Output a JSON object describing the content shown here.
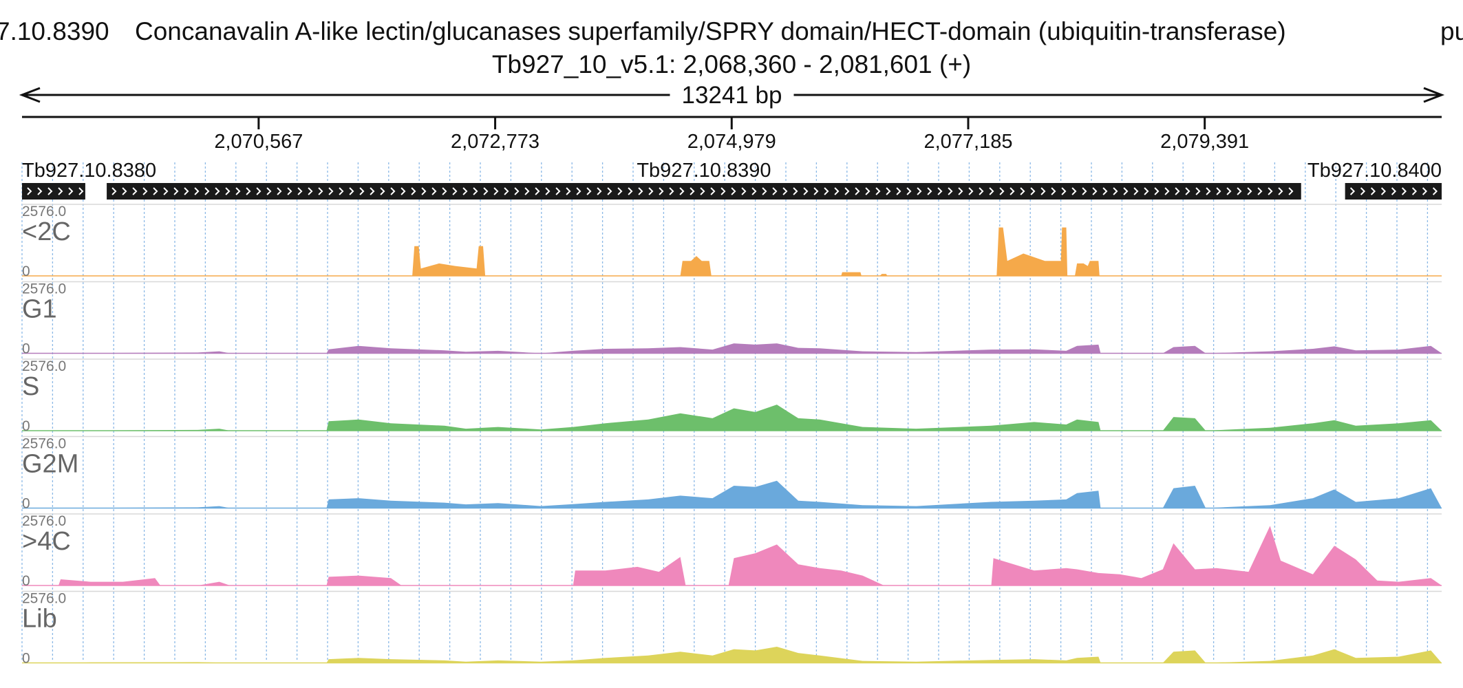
{
  "header": {
    "title_prefix": "7.10.8390",
    "title_description": "Concanavalin A-like lectin/glucanases superfamily/SPRY domain/HECT-domain (ubiquitin-transferase)",
    "title_suffix": "pu",
    "locus": "Tb927_10_v5.1: 2,068,360 - 2,081,601 (+)",
    "span_label": "13241 bp"
  },
  "colors": {
    "<2C": "#f5a94a",
    "G1": "#b47cbb",
    "S": "#6dbf6b",
    "G2M": "#6aa9dc",
    ">4C": "#ef88bc",
    "Lib": "#ddd45a",
    "gene": "#1a1a1a",
    "grid": "#8ab8e6"
  },
  "chart_data": {
    "type": "area",
    "x_range": [
      2068360,
      2081601
    ],
    "x_unit": "bp",
    "ticks": [
      2070567,
      2072773,
      2074979,
      2077185,
      2079391
    ],
    "tick_labels": [
      "2,070,567",
      "2,072,773",
      "2,074,979",
      "2,077,185",
      "2,079,391"
    ],
    "genes": [
      {
        "name": "Tb927.10.8380",
        "start": 2068360,
        "end": 2068950,
        "strand": "+"
      },
      {
        "name": "Tb927.10.8390",
        "start": 2069150,
        "end": 2080290,
        "strand": "+"
      },
      {
        "name": "Tb927.10.8400",
        "start": 2080700,
        "end": 2081601,
        "strand": "+"
      }
    ],
    "tracks": [
      {
        "name": "<2C",
        "max_label": "2576.0",
        "min_label": "0",
        "profile": [
          [
            2068360,
            0
          ],
          [
            2068900,
            5
          ],
          [
            2069100,
            0
          ],
          [
            2072000,
            0
          ],
          [
            2072020,
            1200
          ],
          [
            2072060,
            1200
          ],
          [
            2072080,
            300
          ],
          [
            2072250,
            500
          ],
          [
            2072400,
            400
          ],
          [
            2072600,
            300
          ],
          [
            2072620,
            1200
          ],
          [
            2072660,
            1200
          ],
          [
            2072680,
            0
          ],
          [
            2074500,
            0
          ],
          [
            2074520,
            600
          ],
          [
            2074600,
            600
          ],
          [
            2074650,
            800
          ],
          [
            2074700,
            600
          ],
          [
            2074770,
            600
          ],
          [
            2074790,
            0
          ],
          [
            2076000,
            0
          ],
          [
            2076010,
            150
          ],
          [
            2076180,
            150
          ],
          [
            2076190,
            0
          ],
          [
            2076360,
            0
          ],
          [
            2076380,
            80
          ],
          [
            2076420,
            80
          ],
          [
            2076430,
            0
          ],
          [
            2077450,
            0
          ],
          [
            2077470,
            1950
          ],
          [
            2077510,
            1950
          ],
          [
            2077550,
            600
          ],
          [
            2077700,
            900
          ],
          [
            2077900,
            600
          ],
          [
            2078050,
            600
          ],
          [
            2078060,
            1950
          ],
          [
            2078100,
            1950
          ],
          [
            2078110,
            0
          ],
          [
            2078180,
            0
          ],
          [
            2078200,
            500
          ],
          [
            2078260,
            500
          ],
          [
            2078300,
            400
          ],
          [
            2078320,
            600
          ],
          [
            2078400,
            600
          ],
          [
            2078410,
            0
          ],
          [
            2081601,
            0
          ]
        ]
      },
      {
        "name": "G1",
        "max_label": "2576.0",
        "min_label": "0",
        "profile": [
          [
            2068360,
            0
          ],
          [
            2068900,
            15
          ],
          [
            2069200,
            15
          ],
          [
            2070000,
            30
          ],
          [
            2070200,
            80
          ],
          [
            2070300,
            0
          ],
          [
            2071200,
            0
          ],
          [
            2071220,
            160
          ],
          [
            2071500,
            300
          ],
          [
            2071800,
            200
          ],
          [
            2072300,
            120
          ],
          [
            2072500,
            60
          ],
          [
            2072800,
            100
          ],
          [
            2073200,
            0
          ],
          [
            2073500,
            100
          ],
          [
            2073800,
            180
          ],
          [
            2074200,
            200
          ],
          [
            2074500,
            250
          ],
          [
            2074800,
            150
          ],
          [
            2075000,
            400
          ],
          [
            2075200,
            350
          ],
          [
            2075400,
            400
          ],
          [
            2075600,
            220
          ],
          [
            2075800,
            200
          ],
          [
            2076200,
            80
          ],
          [
            2076700,
            50
          ],
          [
            2077400,
            150
          ],
          [
            2077800,
            160
          ],
          [
            2078100,
            100
          ],
          [
            2078200,
            300
          ],
          [
            2078400,
            350
          ],
          [
            2078420,
            0
          ],
          [
            2079000,
            0
          ],
          [
            2079100,
            250
          ],
          [
            2079300,
            300
          ],
          [
            2079400,
            0
          ],
          [
            2080000,
            80
          ],
          [
            2080400,
            180
          ],
          [
            2080600,
            280
          ],
          [
            2080800,
            120
          ],
          [
            2081200,
            150
          ],
          [
            2081500,
            300
          ],
          [
            2081601,
            0
          ]
        ]
      },
      {
        "name": "S",
        "max_label": "2576.0",
        "min_label": "0",
        "profile": [
          [
            2068360,
            0
          ],
          [
            2068900,
            15
          ],
          [
            2069200,
            15
          ],
          [
            2070000,
            30
          ],
          [
            2070200,
            80
          ],
          [
            2070300,
            0
          ],
          [
            2071200,
            0
          ],
          [
            2071220,
            380
          ],
          [
            2071500,
            450
          ],
          [
            2071800,
            300
          ],
          [
            2072300,
            200
          ],
          [
            2072500,
            80
          ],
          [
            2072800,
            150
          ],
          [
            2073200,
            50
          ],
          [
            2073500,
            150
          ],
          [
            2073800,
            300
          ],
          [
            2074200,
            450
          ],
          [
            2074500,
            700
          ],
          [
            2074800,
            500
          ],
          [
            2075000,
            900
          ],
          [
            2075200,
            750
          ],
          [
            2075400,
            1050
          ],
          [
            2075600,
            500
          ],
          [
            2075800,
            450
          ],
          [
            2076200,
            150
          ],
          [
            2076700,
            80
          ],
          [
            2077400,
            200
          ],
          [
            2077800,
            350
          ],
          [
            2078100,
            250
          ],
          [
            2078200,
            450
          ],
          [
            2078400,
            350
          ],
          [
            2078420,
            0
          ],
          [
            2079000,
            0
          ],
          [
            2079100,
            550
          ],
          [
            2079300,
            500
          ],
          [
            2079400,
            0
          ],
          [
            2080000,
            120
          ],
          [
            2080400,
            300
          ],
          [
            2080600,
            420
          ],
          [
            2080800,
            200
          ],
          [
            2081200,
            300
          ],
          [
            2081500,
            420
          ],
          [
            2081601,
            0
          ]
        ]
      },
      {
        "name": "G2M",
        "max_label": "2576.0",
        "min_label": "0",
        "profile": [
          [
            2068360,
            0
          ],
          [
            2068900,
            15
          ],
          [
            2069200,
            15
          ],
          [
            2070000,
            30
          ],
          [
            2070200,
            80
          ],
          [
            2070300,
            0
          ],
          [
            2071200,
            0
          ],
          [
            2071220,
            350
          ],
          [
            2071500,
            400
          ],
          [
            2071800,
            300
          ],
          [
            2072300,
            220
          ],
          [
            2072500,
            150
          ],
          [
            2072800,
            200
          ],
          [
            2073200,
            80
          ],
          [
            2073500,
            160
          ],
          [
            2073800,
            250
          ],
          [
            2074200,
            350
          ],
          [
            2074500,
            500
          ],
          [
            2074800,
            400
          ],
          [
            2075000,
            900
          ],
          [
            2075200,
            850
          ],
          [
            2075400,
            1100
          ],
          [
            2075600,
            300
          ],
          [
            2075800,
            250
          ],
          [
            2076200,
            120
          ],
          [
            2076700,
            80
          ],
          [
            2077400,
            250
          ],
          [
            2077800,
            300
          ],
          [
            2078100,
            350
          ],
          [
            2078200,
            600
          ],
          [
            2078400,
            700
          ],
          [
            2078420,
            0
          ],
          [
            2079000,
            0
          ],
          [
            2079100,
            800
          ],
          [
            2079300,
            900
          ],
          [
            2079400,
            0
          ],
          [
            2080000,
            120
          ],
          [
            2080400,
            400
          ],
          [
            2080600,
            750
          ],
          [
            2080800,
            250
          ],
          [
            2081200,
            400
          ],
          [
            2081500,
            800
          ],
          [
            2081601,
            0
          ]
        ]
      },
      {
        "name": ">4C",
        "max_label": "2576.0",
        "min_label": "0",
        "profile": [
          [
            2068360,
            0
          ],
          [
            2068700,
            0
          ],
          [
            2068720,
            250
          ],
          [
            2069000,
            150
          ],
          [
            2069300,
            150
          ],
          [
            2069600,
            300
          ],
          [
            2069650,
            0
          ],
          [
            2070000,
            0
          ],
          [
            2070200,
            150
          ],
          [
            2070300,
            0
          ],
          [
            2071200,
            0
          ],
          [
            2071220,
            350
          ],
          [
            2071500,
            400
          ],
          [
            2071800,
            300
          ],
          [
            2071900,
            0
          ],
          [
            2073500,
            0
          ],
          [
            2073520,
            600
          ],
          [
            2073800,
            600
          ],
          [
            2074100,
            750
          ],
          [
            2074300,
            550
          ],
          [
            2074500,
            1150
          ],
          [
            2074550,
            0
          ],
          [
            2074950,
            0
          ],
          [
            2075000,
            1100
          ],
          [
            2075200,
            1300
          ],
          [
            2075400,
            1650
          ],
          [
            2075600,
            850
          ],
          [
            2075800,
            700
          ],
          [
            2076000,
            600
          ],
          [
            2076200,
            400
          ],
          [
            2076300,
            200
          ],
          [
            2076400,
            0
          ],
          [
            2077400,
            0
          ],
          [
            2077420,
            1100
          ],
          [
            2077800,
            600
          ],
          [
            2078100,
            700
          ],
          [
            2078200,
            650
          ],
          [
            2078400,
            500
          ],
          [
            2078600,
            450
          ],
          [
            2078800,
            300
          ],
          [
            2079000,
            650
          ],
          [
            2079100,
            1700
          ],
          [
            2079300,
            650
          ],
          [
            2079500,
            700
          ],
          [
            2079800,
            550
          ],
          [
            2080000,
            2400
          ],
          [
            2080100,
            1000
          ],
          [
            2080400,
            450
          ],
          [
            2080600,
            1600
          ],
          [
            2080800,
            1050
          ],
          [
            2081000,
            200
          ],
          [
            2081200,
            150
          ],
          [
            2081500,
            300
          ],
          [
            2081601,
            0
          ]
        ]
      },
      {
        "name": "Lib",
        "max_label": "2576.0",
        "min_label": "0",
        "profile": [
          [
            2068360,
            0
          ],
          [
            2069000,
            20
          ],
          [
            2070000,
            30
          ],
          [
            2070300,
            0
          ],
          [
            2071200,
            0
          ],
          [
            2071220,
            150
          ],
          [
            2071500,
            200
          ],
          [
            2071800,
            150
          ],
          [
            2072300,
            100
          ],
          [
            2072500,
            50
          ],
          [
            2072800,
            100
          ],
          [
            2073200,
            50
          ],
          [
            2073500,
            100
          ],
          [
            2073800,
            200
          ],
          [
            2074200,
            300
          ],
          [
            2074500,
            450
          ],
          [
            2074800,
            300
          ],
          [
            2075000,
            550
          ],
          [
            2075200,
            500
          ],
          [
            2075400,
            650
          ],
          [
            2075600,
            400
          ],
          [
            2075800,
            300
          ],
          [
            2076200,
            80
          ],
          [
            2076700,
            50
          ],
          [
            2077400,
            120
          ],
          [
            2077800,
            150
          ],
          [
            2078100,
            100
          ],
          [
            2078200,
            200
          ],
          [
            2078400,
            250
          ],
          [
            2078420,
            0
          ],
          [
            2079000,
            0
          ],
          [
            2079100,
            450
          ],
          [
            2079300,
            500
          ],
          [
            2079400,
            0
          ],
          [
            2080000,
            80
          ],
          [
            2080400,
            300
          ],
          [
            2080600,
            550
          ],
          [
            2080800,
            200
          ],
          [
            2081200,
            250
          ],
          [
            2081500,
            500
          ],
          [
            2081601,
            0
          ]
        ]
      }
    ]
  }
}
